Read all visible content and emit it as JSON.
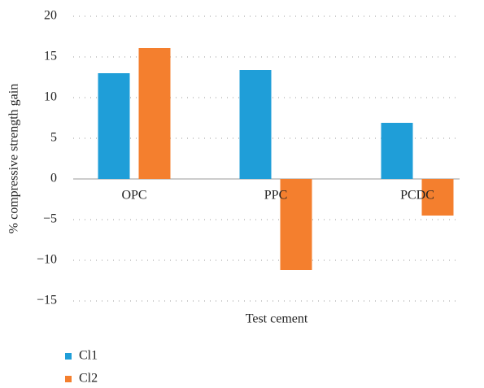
{
  "chart_data": {
    "type": "bar",
    "x_label": "Test cement",
    "y_label": "% compressive strength gain",
    "categories": [
      "OPC",
      "PPC",
      "PCDC"
    ],
    "series": [
      {
        "name": "Cl1",
        "color": "#1f9ed8",
        "values": [
          13,
          13.4,
          6.9
        ]
      },
      {
        "name": "Cl2",
        "color": "#f47f2e",
        "values": [
          16.1,
          -11.2,
          -4.5
        ]
      }
    ],
    "ylim": [
      -15,
      20
    ],
    "yticks": [
      {
        "value": -15,
        "label": "−15"
      },
      {
        "value": -10,
        "label": "−10"
      },
      {
        "value": -5,
        "label": "−5"
      },
      0,
      5,
      10,
      15,
      20
    ],
    "grid": true
  }
}
